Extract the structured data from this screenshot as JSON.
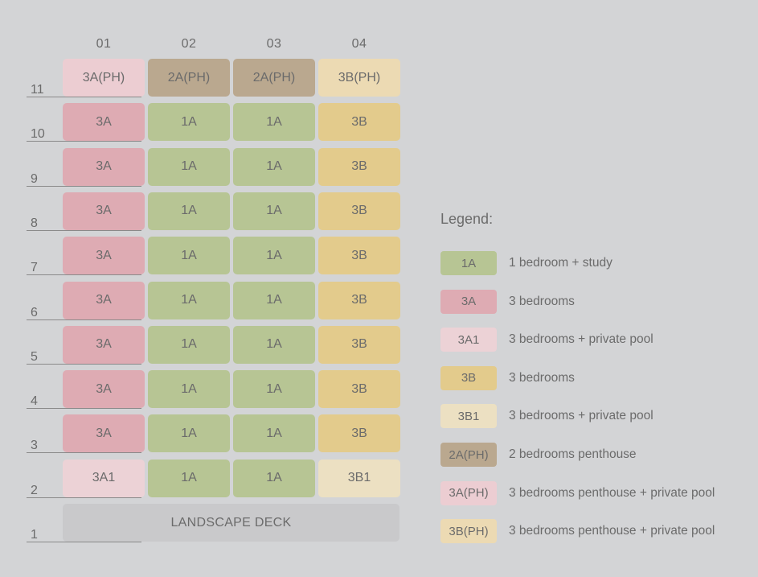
{
  "columns": [
    "01",
    "02",
    "03",
    "04"
  ],
  "floors": [
    "11",
    "10",
    "9",
    "8",
    "7",
    "6",
    "5",
    "4",
    "3",
    "2",
    "1"
  ],
  "types": {
    "1A": {
      "color": "#b7c594"
    },
    "3A": {
      "color": "#deabb3"
    },
    "3A1": {
      "color": "#ecd2d6"
    },
    "3B": {
      "color": "#e3cb8c"
    },
    "3B1": {
      "color": "#ece0c2"
    },
    "2A(PH)": {
      "color": "#baa88f"
    },
    "3A(PH)": {
      "color": "#eccdd2"
    },
    "3B(PH)": {
      "color": "#ecdab3"
    }
  },
  "grid": [
    [
      "3A(PH)",
      "2A(PH)",
      "2A(PH)",
      "3B(PH)"
    ],
    [
      "3A",
      "1A",
      "1A",
      "3B"
    ],
    [
      "3A",
      "1A",
      "1A",
      "3B"
    ],
    [
      "3A",
      "1A",
      "1A",
      "3B"
    ],
    [
      "3A",
      "1A",
      "1A",
      "3B"
    ],
    [
      "3A",
      "1A",
      "1A",
      "3B"
    ],
    [
      "3A",
      "1A",
      "1A",
      "3B"
    ],
    [
      "3A",
      "1A",
      "1A",
      "3B"
    ],
    [
      "3A",
      "1A",
      "1A",
      "3B"
    ],
    [
      "3A1",
      "1A",
      "1A",
      "3B1"
    ]
  ],
  "deck_label": "LANDSCAPE DECK",
  "legend": {
    "title": "Legend:",
    "items": [
      {
        "type": "1A",
        "desc": "1 bedroom + study"
      },
      {
        "type": "3A",
        "desc": "3 bedrooms"
      },
      {
        "type": "3A1",
        "desc": "3 bedrooms + private pool"
      },
      {
        "type": "3B",
        "desc": "3 bedrooms"
      },
      {
        "type": "3B1",
        "desc": "3 bedrooms + private pool"
      },
      {
        "type": "2A(PH)",
        "desc": "2 bedrooms penthouse"
      },
      {
        "type": "3A(PH)",
        "desc": "3 bedrooms penthouse + private pool"
      },
      {
        "type": "3B(PH)",
        "desc": "3 bedrooms penthouse + private pool"
      }
    ]
  }
}
